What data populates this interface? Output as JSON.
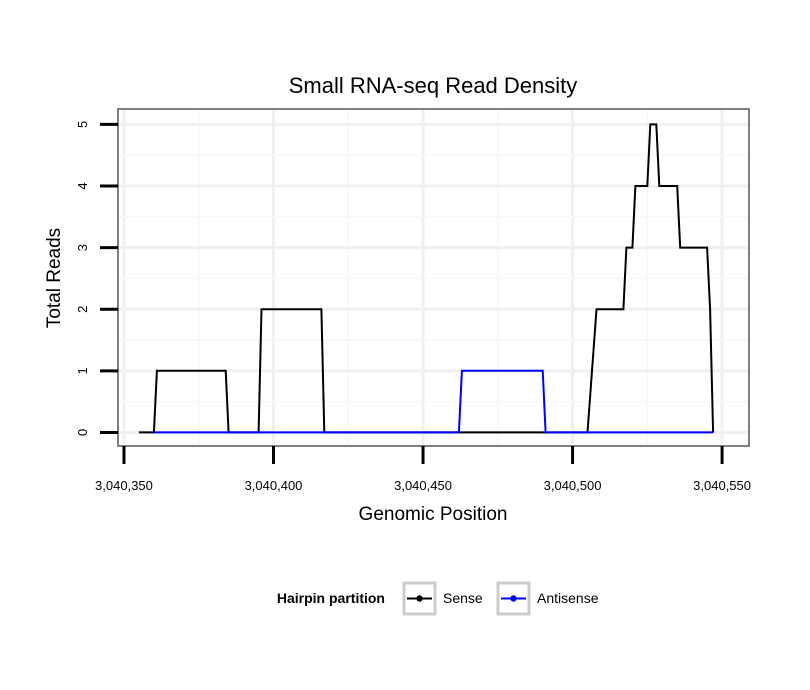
{
  "chart_data": {
    "type": "line",
    "title": "Small RNA-seq Read Density",
    "xlabel": "Genomic Position",
    "ylabel": "Total Reads",
    "xlim": [
      3040348,
      3040559
    ],
    "ylim": [
      -0.22,
      5.25
    ],
    "x_ticks": [
      3040350,
      3040400,
      3040450,
      3040500,
      3040550
    ],
    "x_tick_labels": [
      "3,040,350",
      "3,040,400",
      "3,040,450",
      "3,040,500",
      "3,040,550"
    ],
    "y_ticks": [
      0,
      1,
      2,
      3,
      4,
      5
    ],
    "y_tick_labels": [
      "0",
      "1",
      "2",
      "3",
      "4",
      "5"
    ],
    "grid": true,
    "legend": {
      "title": "Hairpin partition",
      "position": "bottom"
    },
    "series": [
      {
        "name": "Sense",
        "color": "#000000",
        "x": [
          3040355,
          3040360,
          3040361,
          3040384,
          3040385,
          3040395,
          3040396,
          3040416,
          3040417,
          3040505,
          3040508,
          3040517,
          3040518,
          3040520,
          3040521,
          3040525,
          3040526,
          3040528,
          3040529,
          3040535,
          3040536,
          3040545,
          3040546,
          3040547
        ],
        "values": [
          0,
          0,
          1,
          1,
          0,
          0,
          2,
          2,
          0,
          0,
          2,
          2,
          3,
          3,
          4,
          4,
          5,
          5,
          4,
          4,
          3,
          3,
          2,
          0
        ]
      },
      {
        "name": "Antisense",
        "color": "#0000ff",
        "x": [
          3040360,
          3040462,
          3040463,
          3040490,
          3040491,
          3040547
        ],
        "values": [
          0,
          0,
          1,
          1,
          0,
          0
        ]
      }
    ]
  }
}
